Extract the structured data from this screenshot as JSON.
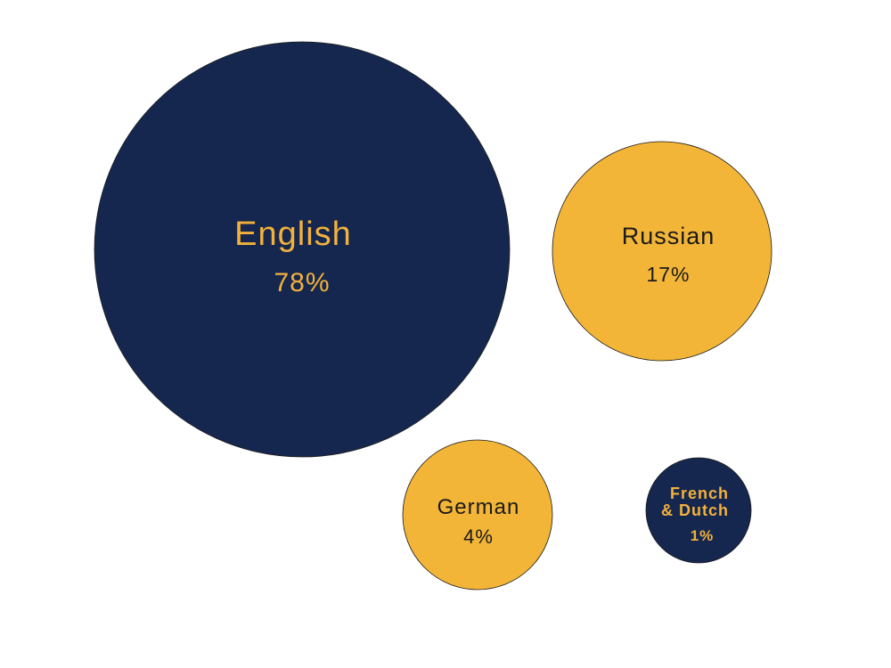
{
  "chart_data": {
    "type": "bubble",
    "bubbles": [
      {
        "label_lines": [
          "English"
        ],
        "value_label": "78%",
        "value": 78,
        "fill": "#15274f",
        "text_color": "#f3b13a"
      },
      {
        "label_lines": [
          "Russian"
        ],
        "value_label": "17%",
        "value": 17,
        "fill": "#f3b537",
        "text_color": "#1a1a1a"
      },
      {
        "label_lines": [
          "German"
        ],
        "value_label": "4%",
        "value": 4,
        "fill": "#f3b537",
        "text_color": "#1a1a1a"
      },
      {
        "label_lines": [
          "French",
          "& Dutch"
        ],
        "value_label": "1%",
        "value": 1,
        "fill": "#15274f",
        "text_color": "#f3b13a"
      }
    ]
  }
}
